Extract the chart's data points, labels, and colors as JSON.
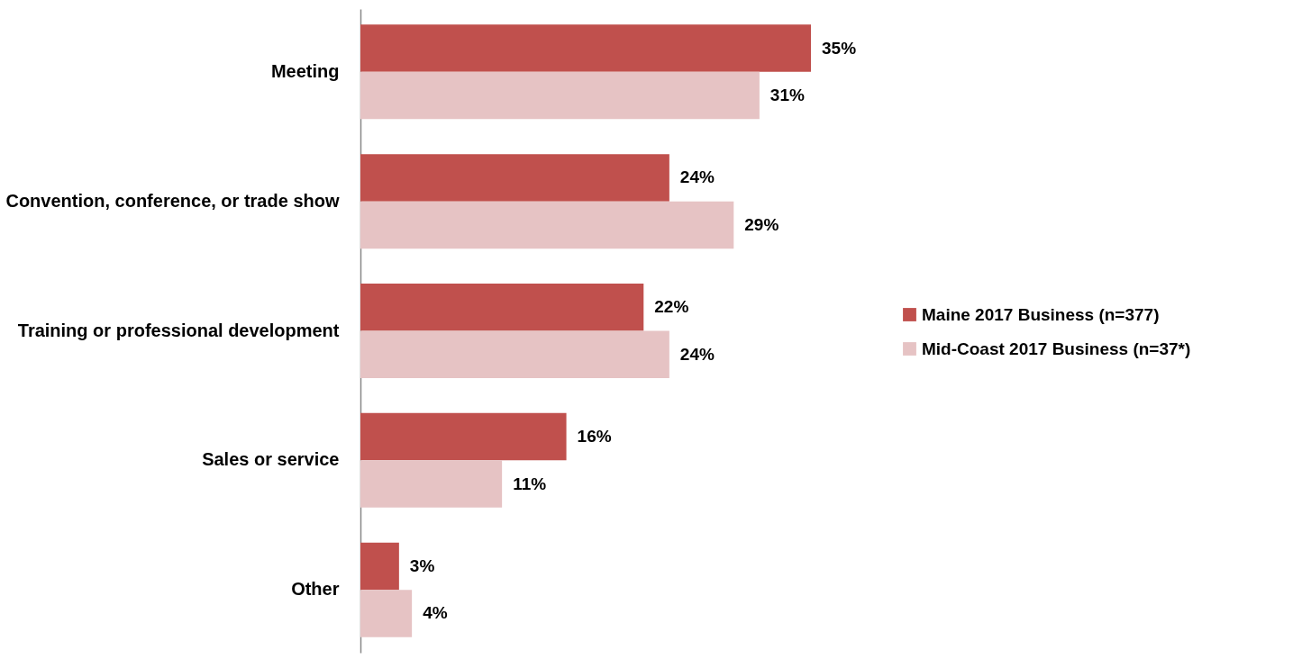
{
  "chart_data": {
    "type": "bar",
    "orientation": "horizontal",
    "categories": [
      "Meeting",
      "Convention, conference, or trade show",
      "Training or professional development",
      "Sales or service",
      "Other"
    ],
    "series": [
      {
        "name": "Maine 2017 Business (n=377)",
        "color": "#c0504d",
        "values": [
          35,
          24,
          22,
          16,
          3
        ],
        "value_labels": [
          "35%",
          "24%",
          "22%",
          "16%",
          "3%"
        ]
      },
      {
        "name": "Mid-Coast 2017 Business (n=37*)",
        "color": "#e6c3c4",
        "values": [
          31,
          29,
          24,
          11,
          4
        ],
        "value_labels": [
          "31%",
          "29%",
          "24%",
          "11%",
          "4%"
        ]
      }
    ],
    "legend": "right",
    "grid": false
  }
}
